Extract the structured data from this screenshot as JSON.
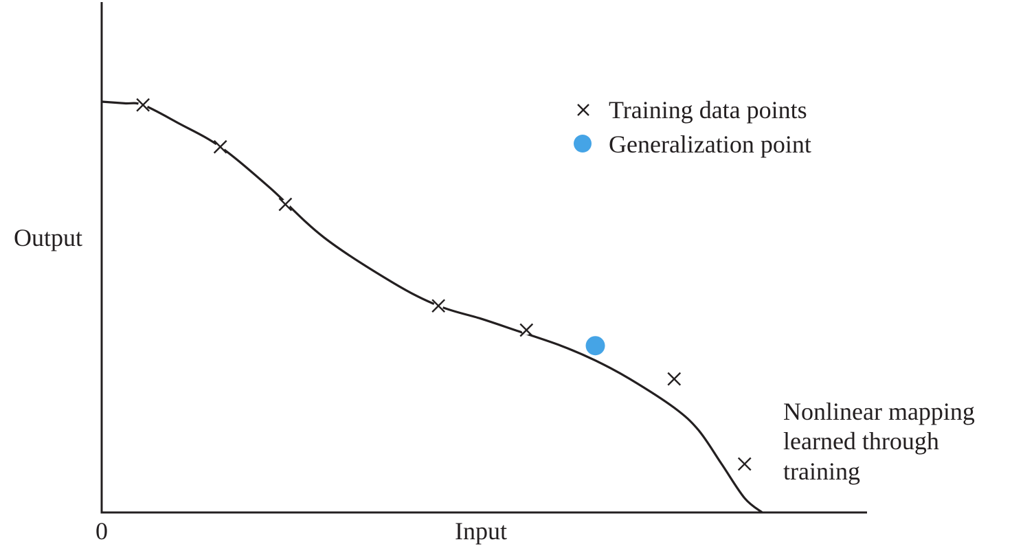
{
  "chart_data": {
    "type": "scatter",
    "xlabel": "Input",
    "ylabel": "Output",
    "origin_label": "0",
    "grid": false,
    "xlim": [
      0,
      100
    ],
    "ylim": [
      0,
      100
    ],
    "curve": {
      "x": [
        0,
        3,
        5.4,
        10,
        15.5,
        22,
        29,
        38,
        44,
        49.5,
        54,
        60,
        64.5,
        69,
        74.8,
        78,
        81,
        84,
        86.3
      ],
      "y": [
        100,
        99.6,
        99.2,
        94.8,
        89,
        79,
        67,
        56,
        50.3,
        47.2,
        44.4,
        40.6,
        37,
        32.5,
        25.5,
        20,
        11.8,
        3.5,
        0
      ]
    },
    "series": [
      {
        "name": "Training data points",
        "marker": "x",
        "color": "#231f20",
        "points": [
          {
            "x": 5.4,
            "y": 99.2
          },
          {
            "x": 15.5,
            "y": 89.0
          },
          {
            "x": 24.0,
            "y": 75.0
          },
          {
            "x": 44.0,
            "y": 50.3
          },
          {
            "x": 55.5,
            "y": 44.4
          },
          {
            "x": 74.8,
            "y": 32.5
          },
          {
            "x": 84.0,
            "y": 11.8
          }
        ]
      },
      {
        "name": "Generalization point",
        "marker": "circle",
        "color": "#45a4e6",
        "points": [
          {
            "x": 64.5,
            "y": 40.6
          }
        ]
      }
    ],
    "legend_position": "top-right",
    "annotation": [
      "Nonlinear mapping",
      "learned through",
      "training"
    ]
  }
}
